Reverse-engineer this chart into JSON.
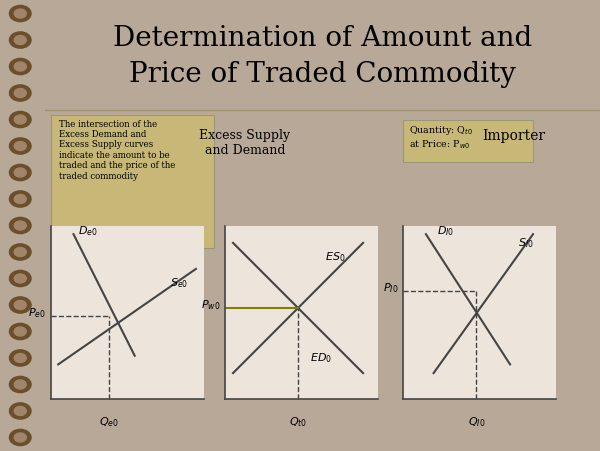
{
  "title_line1": "Determination of Amount and",
  "title_line2": "Price of Traded Commodity",
  "title_fontsize": 20,
  "bg_color": "#e2dbd2",
  "page_bg": "#b8a898",
  "spine_color": "#8B6914",
  "note_box_color": "#c8b878",
  "note_text": "The intersection of the\nExcess Demand and\nExcess Supply curves\nindicate the amount to be\ntraded and the price of the\ntraded commodity",
  "qty_box_color": "#c8b878",
  "label_excess": "Excess Supply\nand Demand",
  "label_importer": "Importer",
  "graph_bg": "#ede5dc",
  "line_color": "#444444",
  "dashed_color": "#444444",
  "highlight_line_color": "#808000"
}
